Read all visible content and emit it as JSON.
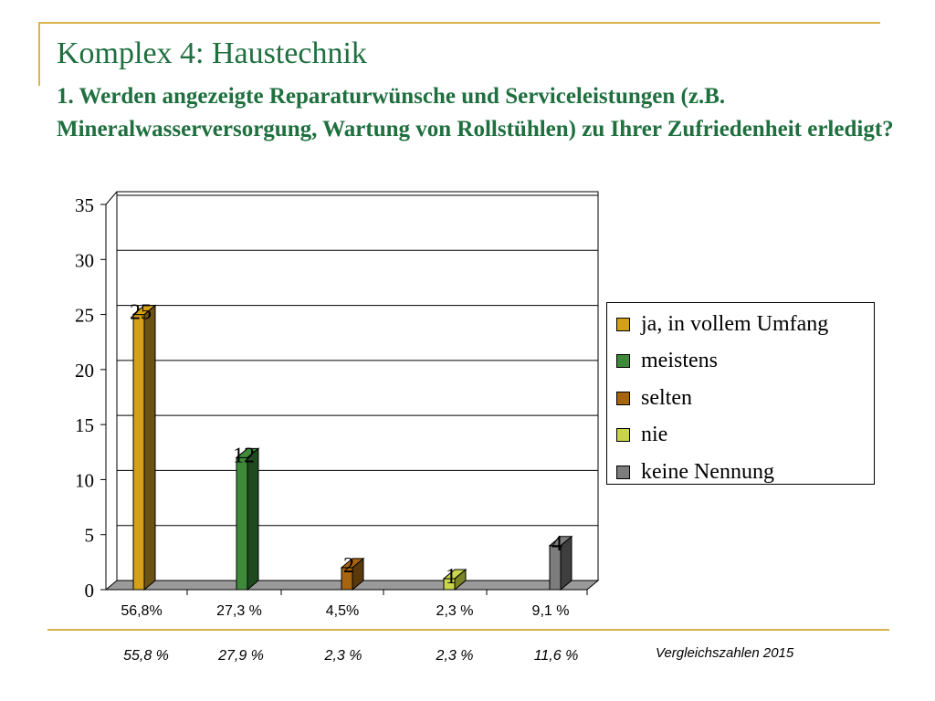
{
  "slide": {
    "title": "Komplex 4: Haustechnik",
    "question": "1. Werden angezeigte Reparaturwünsche und Serviceleistungen (z.B. Mineralwasserversorgung, Wartung von Rollstühlen) zu Ihrer Zufriedenheit erledigt?"
  },
  "chart_data": {
    "type": "bar",
    "title": "",
    "xlabel": "",
    "ylabel": "",
    "ylim": [
      0,
      35
    ],
    "yticks": [
      0,
      5,
      10,
      15,
      20,
      25,
      30,
      35
    ],
    "grid": true,
    "legend_position": "right",
    "categories": [
      "ja, in vollem Umfang",
      "meistens",
      "selten",
      "nie",
      "keine Nennung"
    ],
    "values": [
      25,
      12,
      2,
      1,
      4
    ],
    "data_labels": [
      "25",
      "12",
      "2",
      "1",
      "4"
    ],
    "colors": [
      "#d4a017",
      "#3f8a3a",
      "#a8650f",
      "#c8d44a",
      "#7d7d7d"
    ],
    "dark_colors": [
      "#6b5316",
      "#1f4a1f",
      "#5a3a0c",
      "#7a8326",
      "#3e3e3e"
    ]
  },
  "percentages": {
    "current": [
      "56,8%",
      "27,3 %",
      "4,5%",
      "2,3 %",
      "9,1 %"
    ],
    "comparison": [
      "55,8 %",
      "27,9 %",
      "2,3 %",
      "2,3 %",
      "11,6 %"
    ],
    "comparison_label": "Vergleichszahlen 2015"
  },
  "legend": {
    "items": [
      "ja, in vollem Umfang",
      "meistens",
      "selten",
      "nie",
      "keine Nennung"
    ]
  }
}
